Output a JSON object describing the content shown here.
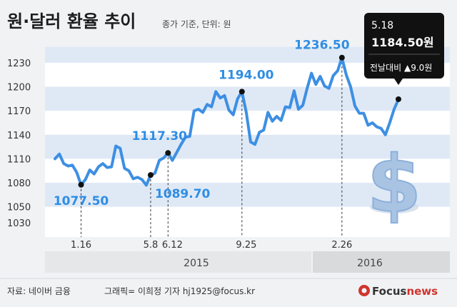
{
  "header": {
    "title": "원·달러 환율 추이",
    "subtitle": "종가 기준, 단위: 원"
  },
  "footer": {
    "source": "자료: 네이버 금융",
    "credit": "그래픽= 이희정 기자  hj1925@focus.kr",
    "brand_part1": "Focus",
    "brand_part2": "news"
  },
  "colors": {
    "line": "#3d8fe3",
    "label": "#2f8de4",
    "band": "#dfe9f6",
    "tooltip_bg": "#111111"
  },
  "chart_data": {
    "type": "line",
    "unit": "원",
    "ylim": [
      1020,
      1250
    ],
    "yticks": [
      1030,
      1050,
      1080,
      1110,
      1140,
      1170,
      1200,
      1230
    ],
    "xtick_labels": [
      {
        "index": 6,
        "label": "1.16"
      },
      {
        "index": 22,
        "label": "5.8"
      },
      {
        "index": 27,
        "label": "6.12"
      },
      {
        "index": 44,
        "label": "9.25"
      },
      {
        "index": 66,
        "label": "2.26"
      }
    ],
    "years": [
      {
        "label": "2015",
        "from_index": 0,
        "to_index": 60
      },
      {
        "label": "2016",
        "from_index": 60,
        "to_index": 79
      }
    ],
    "values": [
      1110,
      1116,
      1104,
      1101,
      1102,
      1093,
      1077.5,
      1084,
      1096,
      1091,
      1100,
      1104,
      1099,
      1100,
      1126,
      1123,
      1098,
      1095,
      1085,
      1087,
      1084,
      1077,
      1089.7,
      1092,
      1108,
      1111,
      1117.3,
      1108,
      1118,
      1128,
      1137,
      1138,
      1170,
      1172,
      1168,
      1178,
      1175,
      1194,
      1186,
      1189,
      1171,
      1165,
      1185,
      1194,
      1168,
      1131,
      1128,
      1143,
      1146,
      1168,
      1157,
      1163,
      1158,
      1175,
      1174,
      1195,
      1172,
      1177,
      1198,
      1217,
      1203,
      1213,
      1201,
      1198,
      1214,
      1220,
      1236.5,
      1215,
      1200,
      1176,
      1167,
      1167,
      1152,
      1155,
      1150,
      1148,
      1140,
      1155,
      1172,
      1184.5
    ],
    "point_labels": [
      {
        "index": 6,
        "text": "1077.50"
      },
      {
        "index": 22,
        "text": "1089.70"
      },
      {
        "index": 26,
        "text": "1117.30"
      },
      {
        "index": 43,
        "text": "1194.00"
      },
      {
        "index": 66,
        "text": "1236.50"
      }
    ],
    "latest": {
      "date": "5.18",
      "value": "1184.50원",
      "change_label": "전날대비",
      "change_arrow": "▲",
      "change_value": "9.0원"
    },
    "grid": "horizontal bands"
  }
}
